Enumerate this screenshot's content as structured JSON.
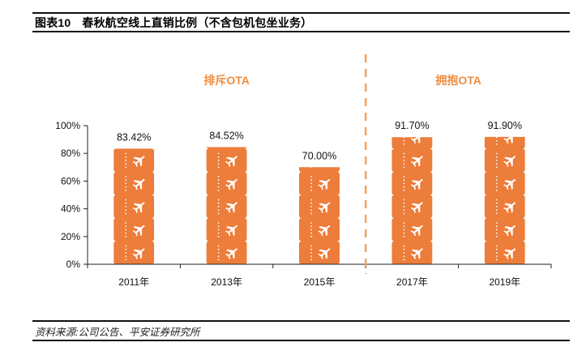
{
  "header": {
    "figure_number": "图表10",
    "title": "春秋航空线上直销比例（不含包机包坐业务）"
  },
  "footer": {
    "source": "资料来源:公司公告、平安证券研究所"
  },
  "colors": {
    "bar": "#ed7d3a",
    "divider": "#f5a25c",
    "group_label": "#f08d3e",
    "axis": "#222222"
  },
  "chart_data": {
    "type": "bar",
    "title": "春秋航空线上直销比例（不含包机包坐业务）",
    "xlabel": "",
    "ylabel": "",
    "categories": [
      "2011年",
      "2013年",
      "2015年",
      "2017年",
      "2019年"
    ],
    "values": [
      83.42,
      84.52,
      70.0,
      91.7,
      91.9
    ],
    "data_labels": [
      "83.42%",
      "84.52%",
      "70.00%",
      "91.70%",
      "91.90%"
    ],
    "ylim": [
      0,
      100
    ],
    "yticks": [
      0,
      20,
      40,
      60,
      80,
      100
    ],
    "ytick_labels": [
      "0%",
      "20%",
      "40%",
      "60%",
      "80%",
      "100%"
    ],
    "grid": false,
    "legend": "none",
    "bar_style": "pictorial stacked tiles with airplane icon",
    "annotations": [
      {
        "text": "排斥OTA",
        "applies_to": [
          "2011年",
          "2013年",
          "2015年"
        ]
      },
      {
        "text": "拥抱OTA",
        "applies_to": [
          "2017年",
          "2019年"
        ]
      }
    ],
    "divider": {
      "type": "dashed vertical line",
      "between": [
        "2015年",
        "2017年"
      ]
    }
  }
}
